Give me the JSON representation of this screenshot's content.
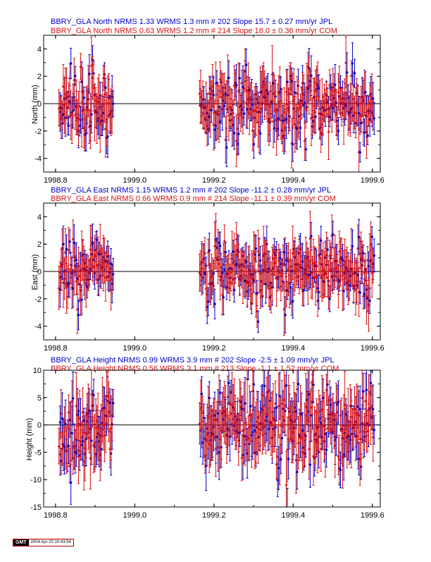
{
  "colors": {
    "jpl": "#0000c8",
    "com": "#d81010",
    "axis": "#000000"
  },
  "footer": {
    "logo": "GMT",
    "timestamp": "2004 Apr 20 10:43:54"
  },
  "panels": [
    {
      "id": "north",
      "legend_jpl": "BBRY_GLA North NRMS 1.33 WRMS  1.3 mm # 202 Slope   15.7 ±  0.27 mm/yr JPL",
      "legend_com": "BBRY_GLA North NRMS 0.63 WRMS  1.2 mm # 214 Slope   16.0 ±  0.36 mm/yr COM",
      "ylabel": "North (mm)",
      "ylim": [
        -5,
        5
      ],
      "yticks": [
        -4,
        -2,
        0,
        2,
        4
      ],
      "ytick_labels": [
        "-4",
        "-2",
        "0",
        "2",
        "4"
      ],
      "amp": 1.3,
      "err": 1.1,
      "com_err": 1.5,
      "seed": 11
    },
    {
      "id": "east",
      "legend_jpl": "BBRY_GLA East NRMS 1.15 WRMS  1.2 mm # 202 Slope  -11.2 ±  0.28 mm/yr JPL",
      "legend_com": "BBRY_GLA East NRMS 0.66 WRMS  0.9 mm # 214 Slope  -11.1 ±  0.39 mm/yr COM",
      "ylabel": "East (mm)",
      "ylim": [
        -5,
        5
      ],
      "yticks": [
        -4,
        -2,
        0,
        2,
        4
      ],
      "ytick_labels": [
        "-4",
        "-2",
        "0",
        "2",
        "4"
      ],
      "amp": 1.2,
      "err": 1.0,
      "com_err": 1.5,
      "seed": 23
    },
    {
      "id": "height",
      "legend_jpl": "BBRY_GLA Height NRMS 0.99 WRMS  3.9 mm # 202 Slope   -2.5 ±  1.09 mm/yr JPL",
      "legend_com": "BBRY_GLA Height NRMS 0.56 WRMS  3.1 mm # 213 Slope   -1.1 ±  1.52 mm/yr COM",
      "ylabel": "Height (mm)",
      "ylim": [
        -15,
        10
      ],
      "yticks": [
        -15,
        -10,
        -5,
        0,
        5,
        10
      ],
      "ytick_labels": [
        "-15",
        "-10",
        "-5",
        "0",
        "5",
        "10"
      ],
      "amp": 3.9,
      "err": 3.6,
      "com_err": 4.5,
      "seed": 37
    }
  ],
  "chart_data": {
    "type": "scatter",
    "x_axis": {
      "xlim": [
        1998.77,
        1999.62
      ],
      "ticks": [
        1998.8,
        1999.0,
        1999.2,
        1999.4,
        1999.6
      ],
      "tick_labels": [
        "1998.8",
        "1999.0",
        "1999.2",
        "1999.4",
        "1999.6"
      ]
    },
    "data_segments": [
      [
        1998.81,
        1998.945
      ],
      [
        1999.165,
        1999.605
      ]
    ],
    "series": [
      {
        "name": "JPL",
        "color": "#0000c8",
        "marker": "circle"
      },
      {
        "name": "COM",
        "color": "#d81010",
        "marker": "triangle"
      }
    ],
    "grid": false,
    "zero_line": true
  }
}
